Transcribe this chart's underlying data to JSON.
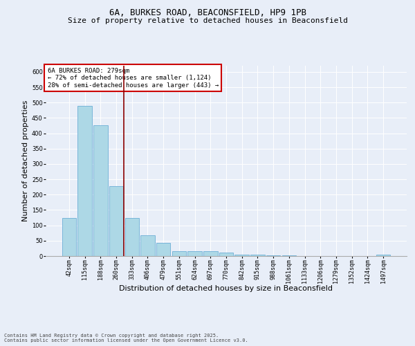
{
  "title_line1": "6A, BURKES ROAD, BEACONSFIELD, HP9 1PB",
  "title_line2": "Size of property relative to detached houses in Beaconsfield",
  "xlabel": "Distribution of detached houses by size in Beaconsfield",
  "ylabel": "Number of detached properties",
  "categories": [
    "42sqm",
    "115sqm",
    "188sqm",
    "260sqm",
    "333sqm",
    "406sqm",
    "479sqm",
    "551sqm",
    "624sqm",
    "697sqm",
    "770sqm",
    "842sqm",
    "915sqm",
    "988sqm",
    "1061sqm",
    "1133sqm",
    "1206sqm",
    "1279sqm",
    "1352sqm",
    "1424sqm",
    "1497sqm"
  ],
  "values": [
    125,
    490,
    425,
    228,
    125,
    68,
    42,
    16,
    16,
    15,
    12,
    5,
    5,
    2,
    2,
    1,
    1,
    1,
    1,
    1,
    4
  ],
  "bar_color": "#add8e6",
  "bar_edge_color": "#6baed6",
  "vline_x": 3.5,
  "vline_color": "#8b0000",
  "annotation_text": "6A BURKES ROAD: 279sqm\n← 72% of detached houses are smaller (1,124)\n28% of semi-detached houses are larger (443) →",
  "annotation_box_color": "#ffffff",
  "annotation_box_edge": "#cc0000",
  "ylim": [
    0,
    620
  ],
  "yticks": [
    0,
    50,
    100,
    150,
    200,
    250,
    300,
    350,
    400,
    450,
    500,
    550,
    600
  ],
  "background_color": "#e8eef8",
  "plot_bg_color": "#e8eef8",
  "footer": "Contains HM Land Registry data © Crown copyright and database right 2025.\nContains public sector information licensed under the Open Government Licence v3.0.",
  "title_fontsize": 9,
  "subtitle_fontsize": 8,
  "tick_fontsize": 6,
  "label_fontsize": 8,
  "annotation_fontsize": 6.5,
  "footer_fontsize": 5
}
